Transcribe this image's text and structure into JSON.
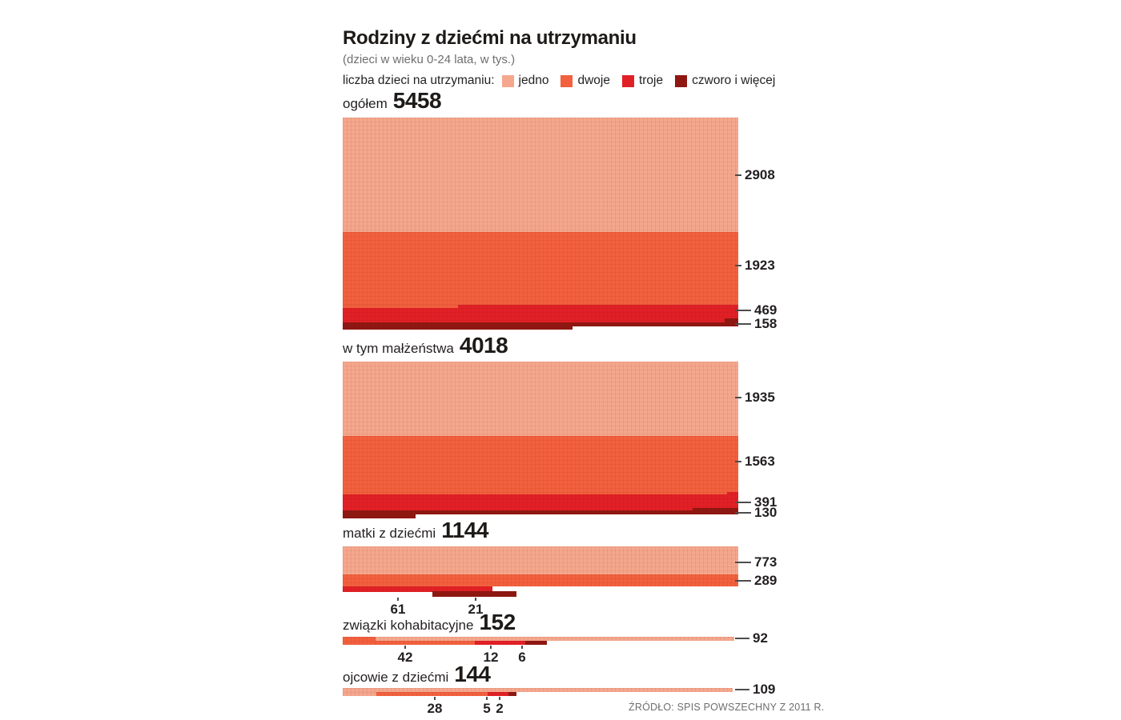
{
  "header": {
    "title": "Rodziny z dziećmi na utrzymaniu",
    "subtitle": "(dzieci w wieku 0-24 lata, w tys.)",
    "legend_label": "liczba dzieci na utrzymaniu:",
    "legend": [
      {
        "key": "jedno",
        "label": "jedno",
        "color": "#F5A78D"
      },
      {
        "key": "dwoje",
        "label": "dwoje",
        "color": "#F2603E"
      },
      {
        "key": "troje",
        "label": "troje",
        "color": "#E12026"
      },
      {
        "key": "czworo",
        "label": "czworo i więcej",
        "color": "#8F1712"
      }
    ]
  },
  "source": "ŹRÓDŁO: SPIS POWSZECHNY Z 2011 R.",
  "chart_data": {
    "type": "area",
    "title": "Rodziny z dziećmi na utrzymaniu",
    "subtitle": "dzieci w wieku 0-24 lata, w tys.",
    "unit": "tys.",
    "categories": [
      "jedno",
      "dwoje",
      "troje",
      "czworo i więcej"
    ],
    "legend_position": "top",
    "grid": false,
    "groups": [
      {
        "label": "ogółem",
        "total": 5458,
        "values": {
          "jedno": 2908,
          "dwoje": 1923,
          "troje": 469,
          "czworo": 158
        }
      },
      {
        "label": "w tym małżeństwa",
        "total": 4018,
        "values": {
          "jedno": 1935,
          "dwoje": 1563,
          "troje": 391,
          "czworo": 130
        }
      },
      {
        "label": "matki z dziećmi",
        "total": 1144,
        "values": {
          "jedno": 773,
          "dwoje": 289,
          "troje": 61,
          "czworo": 21
        }
      },
      {
        "label": "związki kohabitacyjne",
        "total": 152,
        "values": {
          "jedno": 92,
          "dwoje": 42,
          "troje": 12,
          "czworo": 6
        }
      },
      {
        "label": "ojcowie z dziećmi",
        "total": 144,
        "values": {
          "jedno": 109,
          "dwoje": 28,
          "troje": 5,
          "czworo": 2
        }
      }
    ]
  }
}
